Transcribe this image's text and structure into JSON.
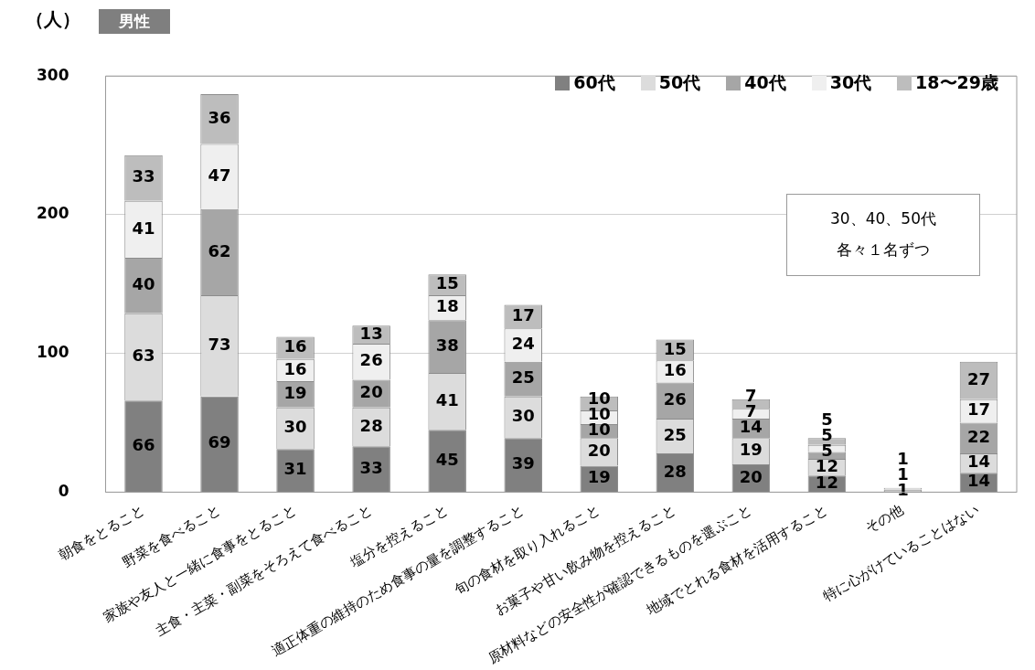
{
  "chart_data": {
    "type": "bar",
    "stacked": true,
    "title": "男性",
    "ylabel": "（人）",
    "categories": [
      "朝食をとること",
      "野菜を食べること",
      "家族や友人と一緒に食事をとること",
      "主食・主菜・副菜をそろえて食べること",
      "塩分を控えること",
      "適正体重の維持のため食事の量を調整すること",
      "旬の食材を取り入れること",
      "お菓子や甘い飲み物を控えること",
      "原材料などの安全性が確認できるものを選ぶこと",
      "地域でとれる食材を活用すること",
      "その他",
      "特に心がけていることはない"
    ],
    "series": [
      {
        "name": "60代",
        "color": "#808080",
        "values": [
          66,
          69,
          31,
          33,
          45,
          39,
          19,
          28,
          20,
          12,
          null,
          14
        ]
      },
      {
        "name": "50代",
        "color": "#dcdcdc",
        "values": [
          63,
          73,
          30,
          28,
          41,
          30,
          20,
          25,
          19,
          12,
          1,
          14
        ]
      },
      {
        "name": "40代",
        "color": "#a6a6a6",
        "values": [
          40,
          62,
          19,
          20,
          38,
          25,
          10,
          26,
          14,
          5,
          1,
          22
        ]
      },
      {
        "name": "30代",
        "color": "#efefef",
        "values": [
          41,
          47,
          16,
          26,
          18,
          24,
          10,
          16,
          7,
          5,
          1,
          17
        ]
      },
      {
        "name": "18〜29歳",
        "color": "#bdbdbd",
        "values": [
          33,
          36,
          16,
          13,
          15,
          17,
          10,
          15,
          7,
          5,
          null,
          27
        ]
      }
    ],
    "ylim": [
      0,
      300
    ],
    "yticks": [
      0,
      100,
      200,
      300
    ],
    "grid": "y",
    "legend": "top right",
    "data_labels": true,
    "annotations": [
      "30、40、50代",
      "各々１名ずつ"
    ]
  }
}
